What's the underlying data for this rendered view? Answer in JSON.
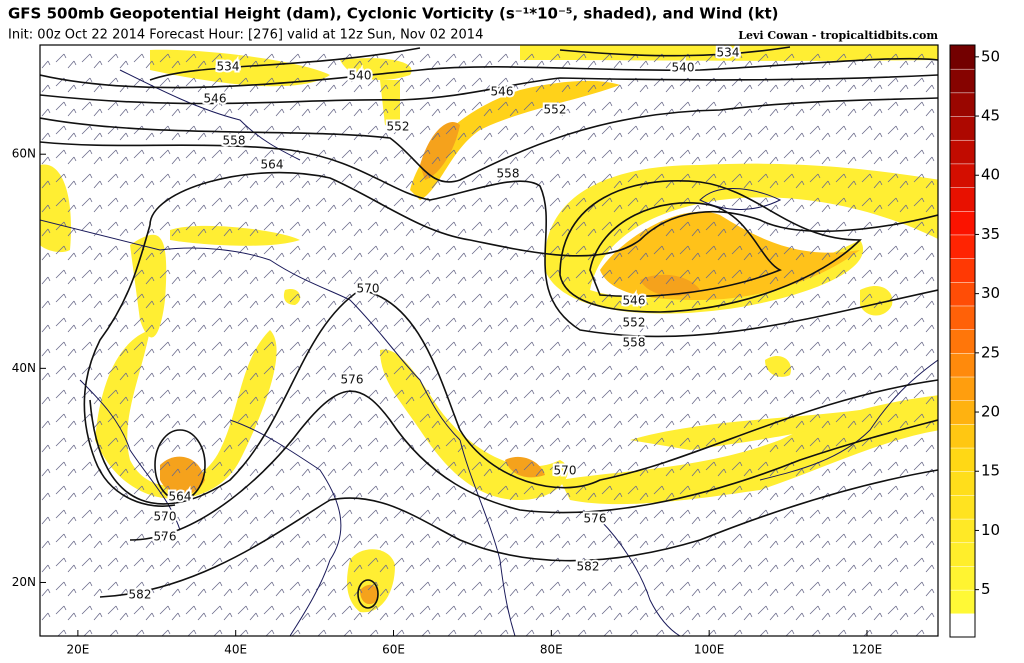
{
  "header": {
    "title": "GFS 500mb Geopotential Height (dam), Cyclonic Vorticity (s⁻¹*10⁻⁵, shaded), and Wind (kt)",
    "subtitle": "Init: 00z Oct 22 2014 Forecast Hour: [276] valid at 12z Sun, Nov 02 2014",
    "credit": "Levi Cowan - tropicaltidbits.com"
  },
  "map": {
    "xlim": [
      15.2,
      129
    ],
    "ylim": [
      15,
      70.2
    ],
    "xticks": [
      {
        "value": 20,
        "label": "20E"
      },
      {
        "value": 40,
        "label": "40E"
      },
      {
        "value": 60,
        "label": "60E"
      },
      {
        "value": 80,
        "label": "80E"
      },
      {
        "value": 100,
        "label": "100E"
      },
      {
        "value": 120,
        "label": "120E"
      }
    ],
    "yticks": [
      {
        "value": 20,
        "label": "20N"
      },
      {
        "value": 40,
        "label": "40N"
      },
      {
        "value": 60,
        "label": "60N"
      }
    ],
    "contour_labels": [
      534,
      540,
      546,
      552,
      558,
      564,
      570,
      576,
      546,
      552,
      558,
      540,
      534,
      546,
      552,
      558,
      570,
      576,
      582,
      582,
      576,
      570,
      564
    ]
  },
  "colorbar": {
    "lim": [
      1,
      51
    ],
    "ticks": [
      5,
      10,
      15,
      20,
      25,
      30,
      35,
      40,
      45,
      50
    ]
  }
}
